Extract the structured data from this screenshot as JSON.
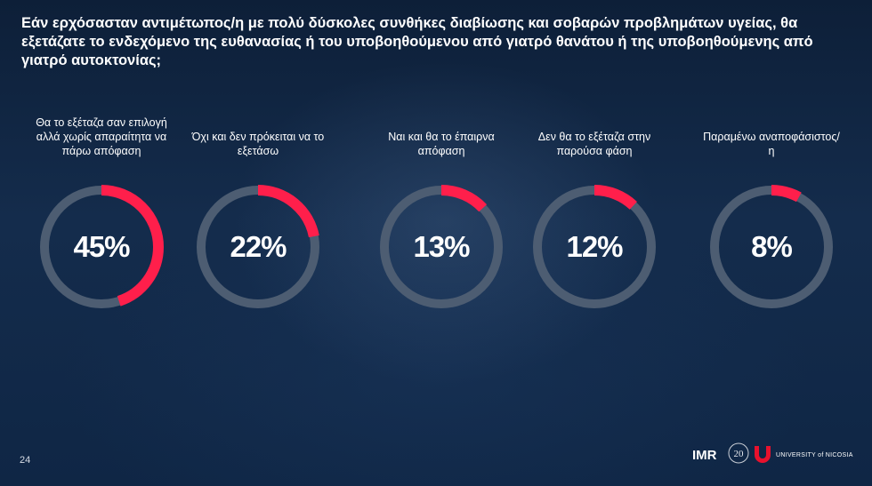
{
  "question": "Εάν ερχόσασταν αντιμέτωπος/η με πολύ δύσκολες συνθήκες διαβίωσης και σοβαρών προβλημάτων υγείας, θα εξετάζατε το ενδεχόμενο της ευθανασίας ή του υποβοηθούμενου από γιατρό θανάτου ή της υποβοηθούμενης από γιατρό αυτοκτονίας;",
  "page_number": "24",
  "colors": {
    "accent": "#ff1f4b",
    "track": "#4d5d72",
    "background": "#0f2440"
  },
  "logos": {
    "imr": "IMR",
    "anniversary": "20",
    "university": "UNIVERSITY of NICOSIA"
  },
  "chart_data": {
    "type": "pie",
    "categories": [
      "Θα το εξέταζα σαν επιλογή αλλά χωρίς απαραίτητα να πάρω απόφαση",
      "Όχι και δεν πρόκειται να το εξετάσω",
      "Ναι και θα το έπαιρνα απόφαση",
      "Δεν θα το εξέταζα στην παρούσα φάση",
      "Παραμένω αναποφάσιστος/η"
    ],
    "values": [
      45,
      22,
      13,
      12,
      8
    ],
    "value_labels": [
      "45%",
      "22%",
      "13%",
      "12%",
      "8%"
    ]
  }
}
